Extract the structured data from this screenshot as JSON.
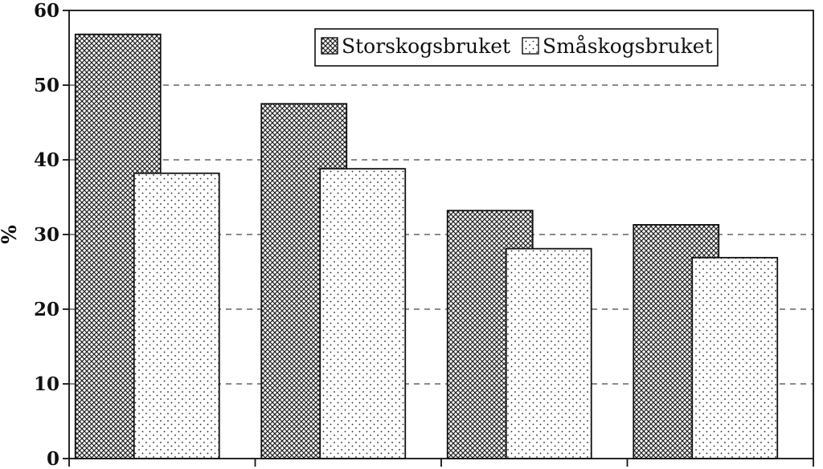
{
  "chart_data": {
    "type": "bar",
    "categories": [
      "",
      "",
      "",
      ""
    ],
    "series": [
      {
        "name": "Storskogsbruket",
        "values": [
          56.8,
          47.5,
          33.2,
          31.3
        ],
        "pattern": "crosshatch"
      },
      {
        "name": "Småskogsbruket",
        "values": [
          38.2,
          38.8,
          28.1,
          26.9
        ],
        "pattern": "dots"
      }
    ],
    "title": "",
    "xlabel": "",
    "ylabel": "%",
    "ylim": [
      0,
      60
    ],
    "yticks": [
      "0",
      "10",
      "20",
      "30",
      "40",
      "50",
      "60"
    ],
    "grid": "horizontal dashed",
    "legend_position": "top-right",
    "colors": {
      "ink": "#111111",
      "background": "#ffffff"
    }
  }
}
